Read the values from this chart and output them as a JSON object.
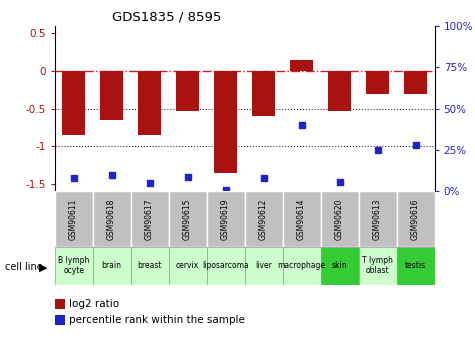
{
  "title": "GDS1835 / 8595",
  "gsm_labels": [
    "GSM90611",
    "GSM90618",
    "GSM90617",
    "GSM90615",
    "GSM90619",
    "GSM90612",
    "GSM90614",
    "GSM90620",
    "GSM90613",
    "GSM90616"
  ],
  "cell_labels": [
    "B lymph\nocyte",
    "brain",
    "breast",
    "cervix",
    "liposarcoma",
    "liver",
    "macrophage",
    "skin",
    "T lymphoblast",
    "testis"
  ],
  "cell_display": [
    "B lymph\nocyte",
    "brain",
    "breast",
    "cervix",
    "liposarcoma",
    "liver",
    "macrophage",
    "skin",
    "T lymph\noblast",
    "testis"
  ],
  "cell_colors": [
    "#ccffcc",
    "#ccffcc",
    "#ccffcc",
    "#ccffcc",
    "#ccffcc",
    "#ccffcc",
    "#ccffcc",
    "#33cc33",
    "#ccffcc",
    "#33cc33"
  ],
  "log2_ratio": [
    -0.85,
    -0.65,
    -0.85,
    -0.53,
    -1.35,
    -0.6,
    0.15,
    -0.53,
    -0.3,
    -0.3
  ],
  "percentile_rank": [
    8,
    10,
    5,
    9,
    1,
    8,
    40,
    6,
    25,
    28
  ],
  "ylim_left": [
    -1.6,
    0.6
  ],
  "ylim_right": [
    0,
    100
  ],
  "bar_color": "#aa1111",
  "dot_color": "#2222cc",
  "ref_line_color": "#cc2222",
  "dotted_line_color": "#333333",
  "gsm_bg": "#c0c0c0",
  "cell_bg_light": "#ccffcc",
  "cell_bg_dark": "#33cc33",
  "legend_red_label": "log2 ratio",
  "legend_blue_label": "percentile rank within the sample",
  "cell_line_label": "cell line"
}
